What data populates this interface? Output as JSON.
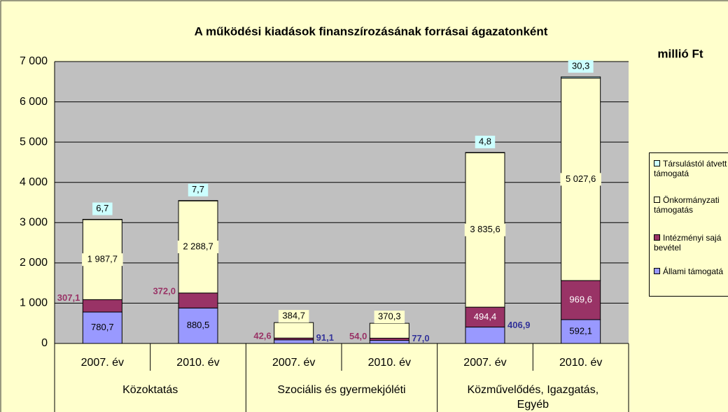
{
  "chart_data": {
    "type": "stacked_bar",
    "title": "A működési kiadások finanszírozásának forrásai ágazatonként",
    "unit_label": "millió Ft",
    "categories": [
      "2007. év",
      "2010. év",
      "2007. év",
      "2010. év",
      "2007. év",
      "2010. év"
    ],
    "groups": [
      "Közoktatás",
      "Szociális és gyermekjóléti",
      "Közművelődés, Igazgatás, Egyéb"
    ],
    "ylim": [
      0,
      7000
    ],
    "yticks": [
      0,
      {
        "value": 1000,
        "label": "1 000"
      },
      {
        "value": 2000,
        "label": "2 000"
      },
      {
        "value": 3000,
        "label": "3 000"
      },
      {
        "value": 4000,
        "label": "4 000"
      },
      {
        "value": 5000,
        "label": "5 000"
      },
      {
        "value": 6000,
        "label": "6 000"
      },
      {
        "value": 7000,
        "label": "7 000"
      }
    ],
    "grid": true,
    "legend": "right",
    "series": [
      {
        "name": "Állami támogatá",
        "color": "#9999ff",
        "values": [
          780.7,
          880.5,
          91.1,
          77.0,
          406.9,
          592.1
        ],
        "value_labels": [
          "780,7",
          "880,5",
          "91,1",
          "77,0",
          "406,9",
          "592,1"
        ]
      },
      {
        "name": "Intézményi sajá bevétel",
        "color": "#993366",
        "values": [
          307.1,
          372.0,
          42.6,
          54.0,
          494.4,
          969.6
        ],
        "value_labels": [
          "307,1",
          "372,0",
          "42,6",
          "54,0",
          "494,4",
          "969,6"
        ]
      },
      {
        "name": "Önkormányzati támogatás",
        "color": "#ffffcc",
        "values": [
          1987.7,
          2288.7,
          384.7,
          370.3,
          3835.6,
          5027.6
        ],
        "value_labels": [
          "1 987,7",
          "2 288,7",
          "384,7",
          "370,3",
          "3 835,6",
          "5 027,6"
        ]
      },
      {
        "name": "Társulástól átvett támogatá",
        "color": "#ccffff",
        "values": [
          6.7,
          7.7,
          null,
          null,
          4.8,
          30.3
        ],
        "value_labels": [
          "6,7",
          "7,7",
          null,
          null,
          "4,8",
          "30,3"
        ]
      }
    ]
  }
}
